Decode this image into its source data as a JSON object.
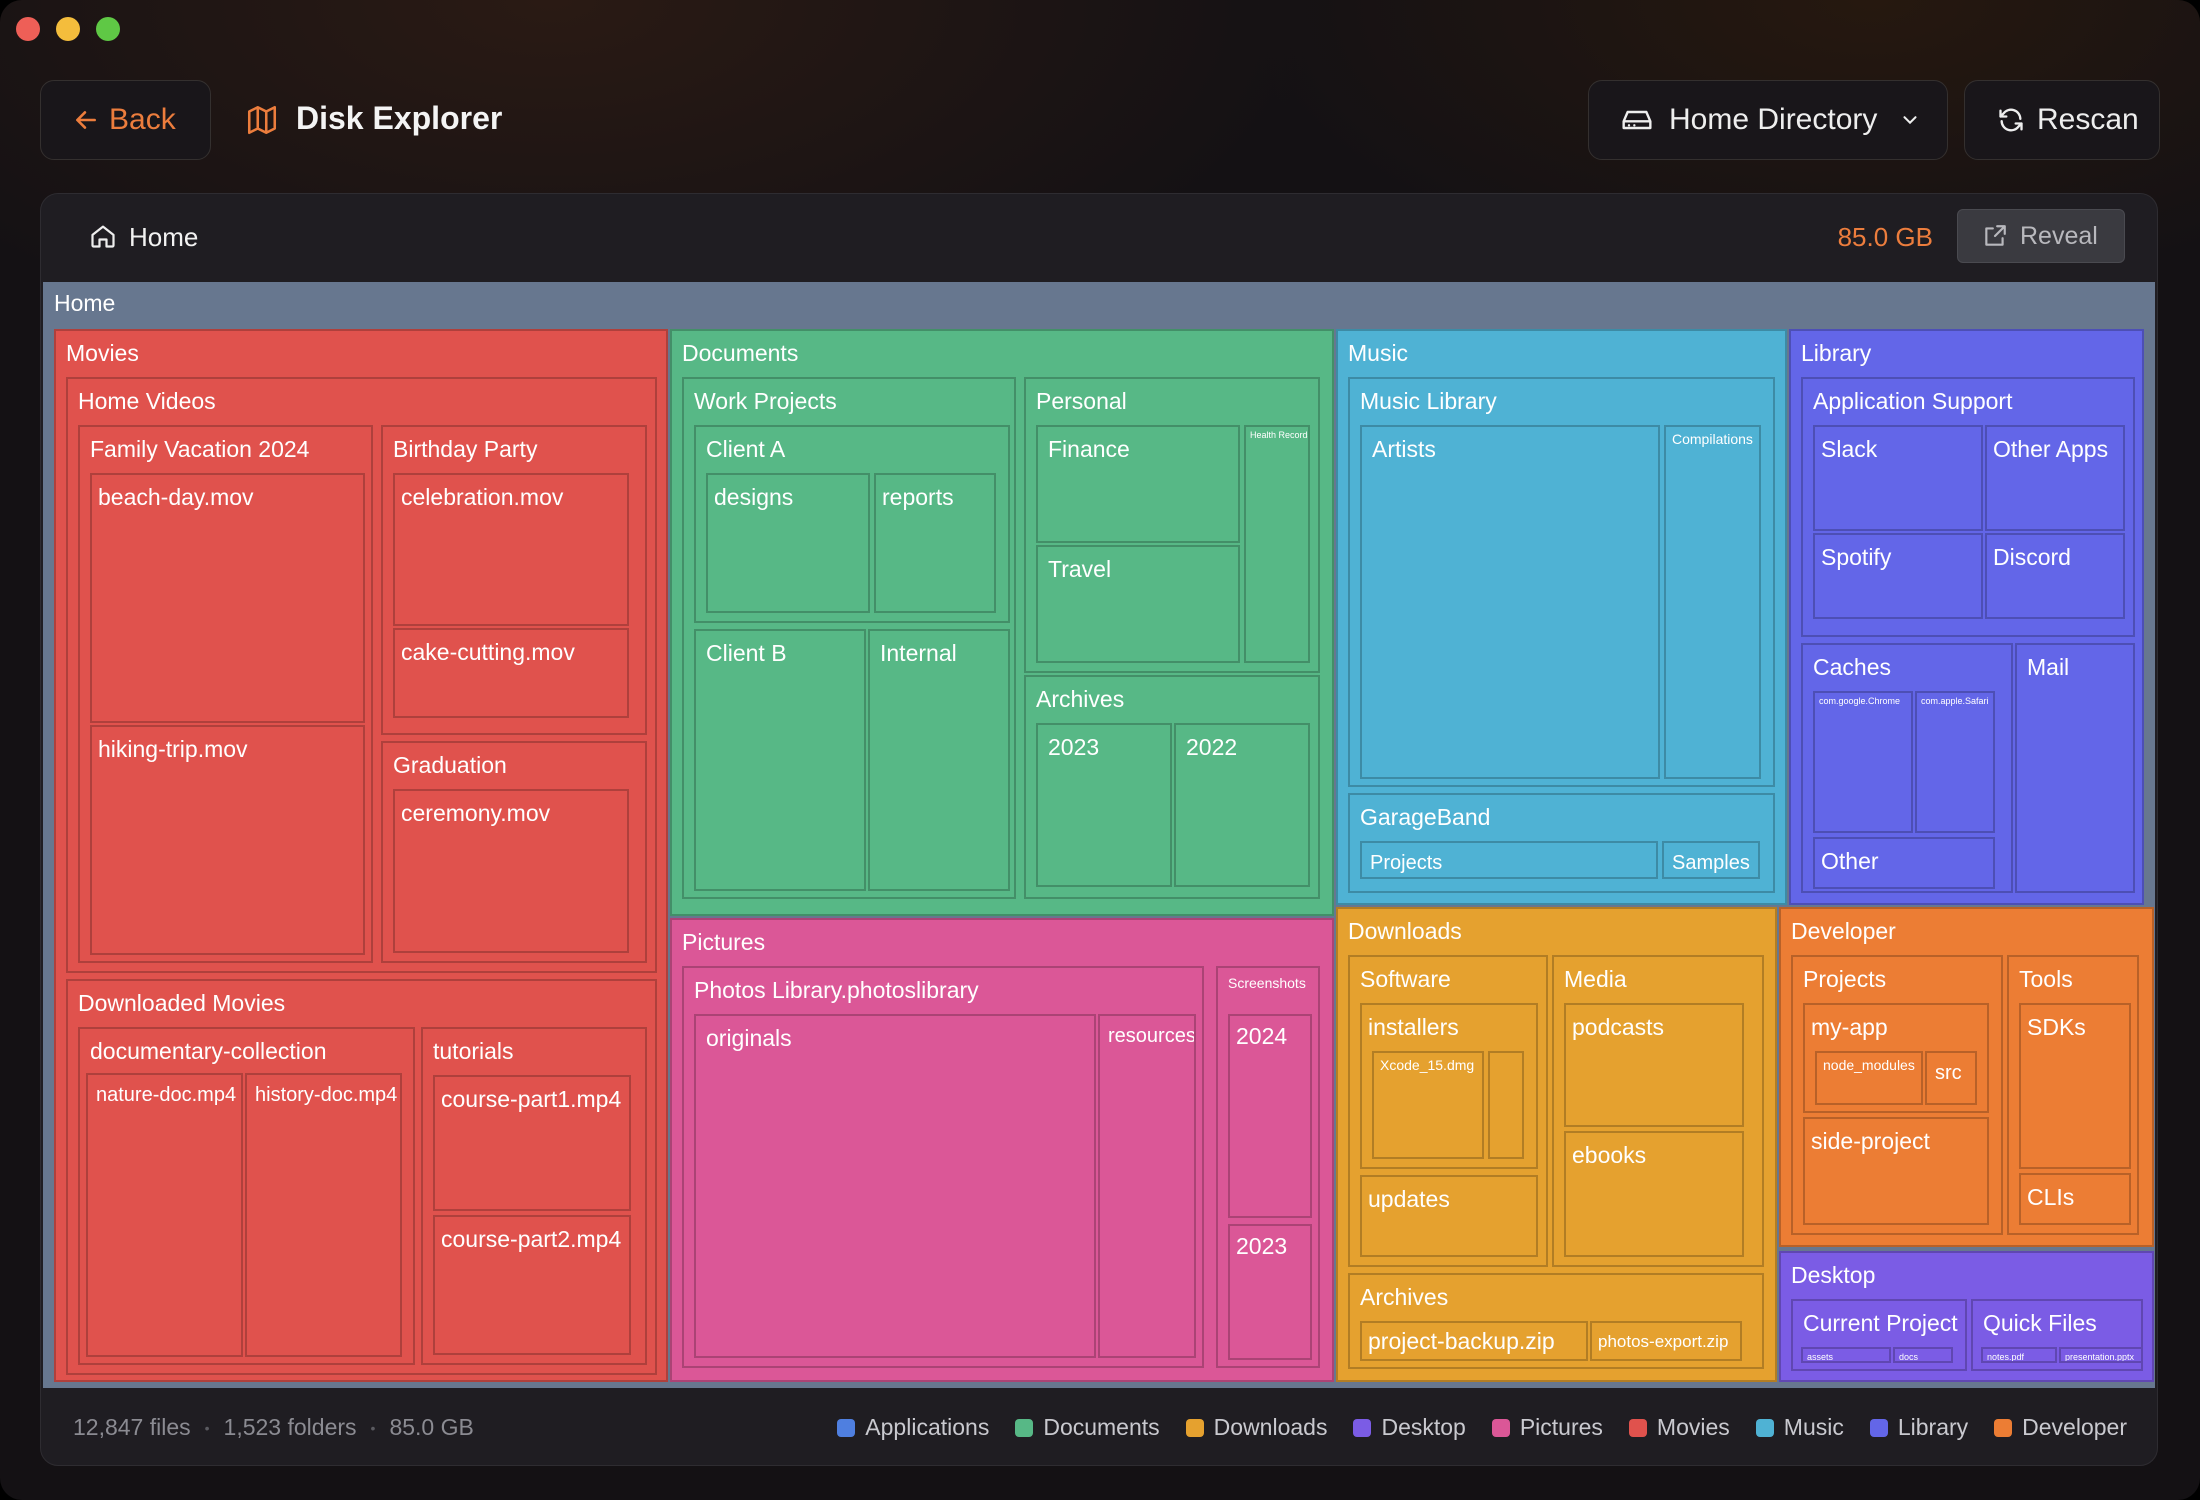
{
  "header": {
    "back_label": "Back",
    "app_title": "Disk Explorer",
    "location_dropdown": "Home Directory",
    "rescan_label": "Rescan"
  },
  "panel": {
    "breadcrumb": "Home",
    "total_size": "85.0 GB",
    "reveal_label": "Reveal"
  },
  "treemap": {
    "root": "Home",
    "movies": {
      "label": "Movies",
      "home_videos": "Home Videos",
      "family_vacation": "Family Vacation 2024",
      "beach_day": "beach-day.mov",
      "hiking_trip": "hiking-trip.mov",
      "birthday_party": "Birthday Party",
      "celebration": "celebration.mov",
      "cake_cutting": "cake-cutting.mov",
      "graduation": "Graduation",
      "ceremony": "ceremony.mov",
      "downloaded_movies": "Downloaded Movies",
      "documentary_collection": "documentary-collection",
      "nature_doc": "nature-doc.mp4",
      "history_doc": "history-doc.mp4",
      "tutorials": "tutorials",
      "course_part1": "course-part1.mp4",
      "course_part2": "course-part2.mp4"
    },
    "documents": {
      "label": "Documents",
      "work_projects": "Work Projects",
      "client_a": "Client A",
      "designs": "designs",
      "reports": "reports",
      "client_b": "Client B",
      "internal": "Internal",
      "personal": "Personal",
      "finance": "Finance",
      "travel": "Travel",
      "health_records": "Health Records",
      "archives": "Archives",
      "y2023": "2023",
      "y2022": "2022"
    },
    "pictures": {
      "label": "Pictures",
      "photos_library": "Photos Library.photoslibrary",
      "originals": "originals",
      "resources": "resources",
      "screenshots": "Screenshots",
      "y2024": "2024",
      "y2023": "2023"
    },
    "music": {
      "label": "Music",
      "music_library": "Music Library",
      "artists": "Artists",
      "compilations": "Compilations",
      "garageband": "GarageBand",
      "projects": "Projects",
      "samples": "Samples"
    },
    "library": {
      "label": "Library",
      "application_support": "Application Support",
      "slack": "Slack",
      "other_apps": "Other Apps",
      "spotify": "Spotify",
      "discord": "Discord",
      "caches": "Caches",
      "chrome": "com.google.Chrome",
      "safari": "com.apple.Safari",
      "other": "Other",
      "mail": "Mail"
    },
    "downloads": {
      "label": "Downloads",
      "software": "Software",
      "installers": "installers",
      "xcode": "Xcode_15.dmg",
      "updates": "updates",
      "media": "Media",
      "podcasts": "podcasts",
      "ebooks": "ebooks",
      "archives": "Archives",
      "project_backup": "project-backup.zip",
      "photos_export": "photos-export.zip"
    },
    "developer": {
      "label": "Developer",
      "projects": "Projects",
      "my_app": "my-app",
      "node_modules": "node_modules",
      "src": "src",
      "side_project": "side-project",
      "tools": "Tools",
      "sdks": "SDKs",
      "clis": "CLIs"
    },
    "desktop": {
      "label": "Desktop",
      "current_project": "Current Project",
      "assets": "assets",
      "docs": "docs",
      "quick_files": "Quick Files",
      "notes": "notes.pdf",
      "presentation": "presentation.pptx"
    }
  },
  "footer": {
    "files": "12,847 files",
    "folders": "1,523 folders",
    "size": "85.0 GB",
    "sep": "•"
  },
  "legend": [
    {
      "label": "Applications",
      "color": "#4f7fe0"
    },
    {
      "label": "Documents",
      "color": "#57b886"
    },
    {
      "label": "Downloads",
      "color": "#e5a12f"
    },
    {
      "label": "Desktop",
      "color": "#7b5ce5"
    },
    {
      "label": "Pictures",
      "color": "#db5797"
    },
    {
      "label": "Movies",
      "color": "#e0524d"
    },
    {
      "label": "Music",
      "color": "#4fb2d4"
    },
    {
      "label": "Library",
      "color": "#6366e8"
    },
    {
      "label": "Developer",
      "color": "#ec7d34"
    }
  ],
  "colors": {
    "accent": "#ec7d3d",
    "movies": "#e0524d",
    "documents": "#57b886",
    "pictures": "#db5797",
    "music": "#4fb2d4",
    "library": "#6366e8",
    "downloads": "#e5a12f",
    "developer": "#ec7d34",
    "desktop": "#7b5ce5"
  }
}
